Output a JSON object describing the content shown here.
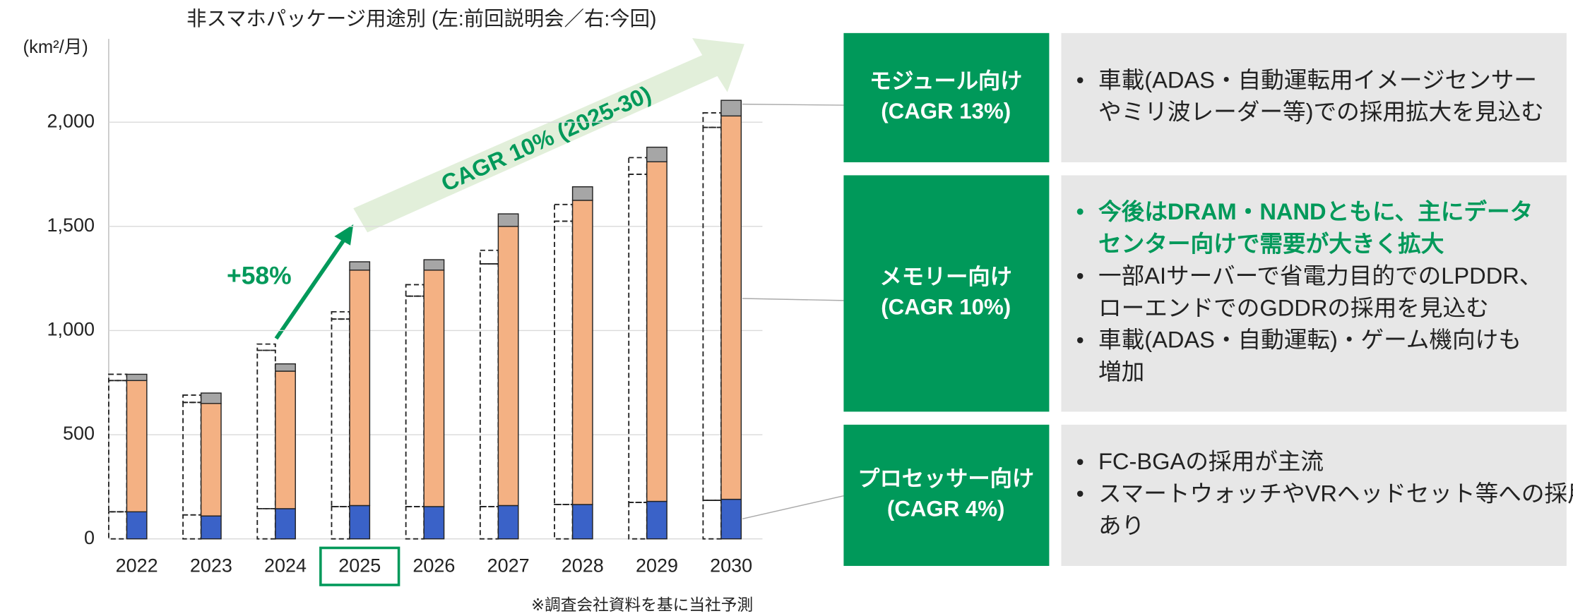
{
  "chart_data": {
    "type": "bar",
    "stacked": true,
    "title": "非スマホパッケージ用途別 (左:前回説明会／右:今回)",
    "y_label": "(km²/月)",
    "categories": [
      "2022",
      "2023",
      "2024",
      "2025",
      "2026",
      "2027",
      "2028",
      "2029",
      "2030"
    ],
    "highlight_category": 3,
    "series": [
      {
        "color": "#3a62c8",
        "values": [
          130,
          110,
          145,
          160,
          155,
          160,
          165,
          180,
          190
        ]
      },
      {
        "color": "#f4b183",
        "values": [
          630,
          540,
          660,
          1130,
          1135,
          1340,
          1460,
          1630,
          1840
        ]
      },
      {
        "color": "#a6a6a6",
        "values": [
          30,
          50,
          35,
          40,
          50,
          60,
          65,
          70,
          75
        ]
      }
    ],
    "previous_series": {
      "style": "dashed",
      "series": [
        {
          "values": [
            130,
            115,
            145,
            155,
            155,
            155,
            165,
            175,
            185
          ]
        },
        {
          "values": [
            630,
            540,
            760,
            900,
            1010,
            1165,
            1360,
            1575,
            1790
          ]
        },
        {
          "values": [
            30,
            35,
            30,
            35,
            55,
            65,
            80,
            80,
            70
          ]
        }
      ]
    },
    "ylim": [
      0,
      2400
    ],
    "yticks": [
      0,
      500,
      {
        "value": 1000,
        "label": "1,000"
      },
      {
        "value": 1500,
        "label": "1,500"
      },
      {
        "value": 2000,
        "label": "2,000"
      }
    ],
    "grid": true,
    "annotations": [
      "+58%",
      "CAGR 10% (2025-30)"
    ],
    "footnote": "※調査会社資料を基に当社予測"
  },
  "panels": [
    {
      "title": [
        "モジュール向け",
        "(CAGR 13%)"
      ],
      "bullets": [
        {
          "lines": [
            "車載(ADAS・自動運転用イメージセンサー",
            "やミリ波レーダー等)での採用拡大を見込む"
          ]
        }
      ]
    },
    {
      "title": [
        "メモリー向け",
        "(CAGR 10%)"
      ],
      "bullets": [
        {
          "emphasis": true,
          "lines": [
            "今後はDRAM・NANDともに、主にデータ",
            "センター向けで需要が大きく拡大"
          ]
        },
        {
          "lines": [
            "一部AIサーバーで省電力目的でのLPDDR、",
            "ローエンドでのGDDRの採用を見込む"
          ]
        },
        {
          "lines": [
            "車載(ADAS・自動運転)・ゲーム機向けも",
            "増加"
          ]
        }
      ]
    },
    {
      "title": [
        "プロセッサー向け",
        "(CAGR 4%)"
      ],
      "bullets": [
        {
          "lines": [
            "FC-BGAの採用が主流"
          ]
        },
        {
          "lines": [
            "スマートウォッチやVRヘッドセット等への採用",
            "あり"
          ]
        }
      ]
    }
  ]
}
